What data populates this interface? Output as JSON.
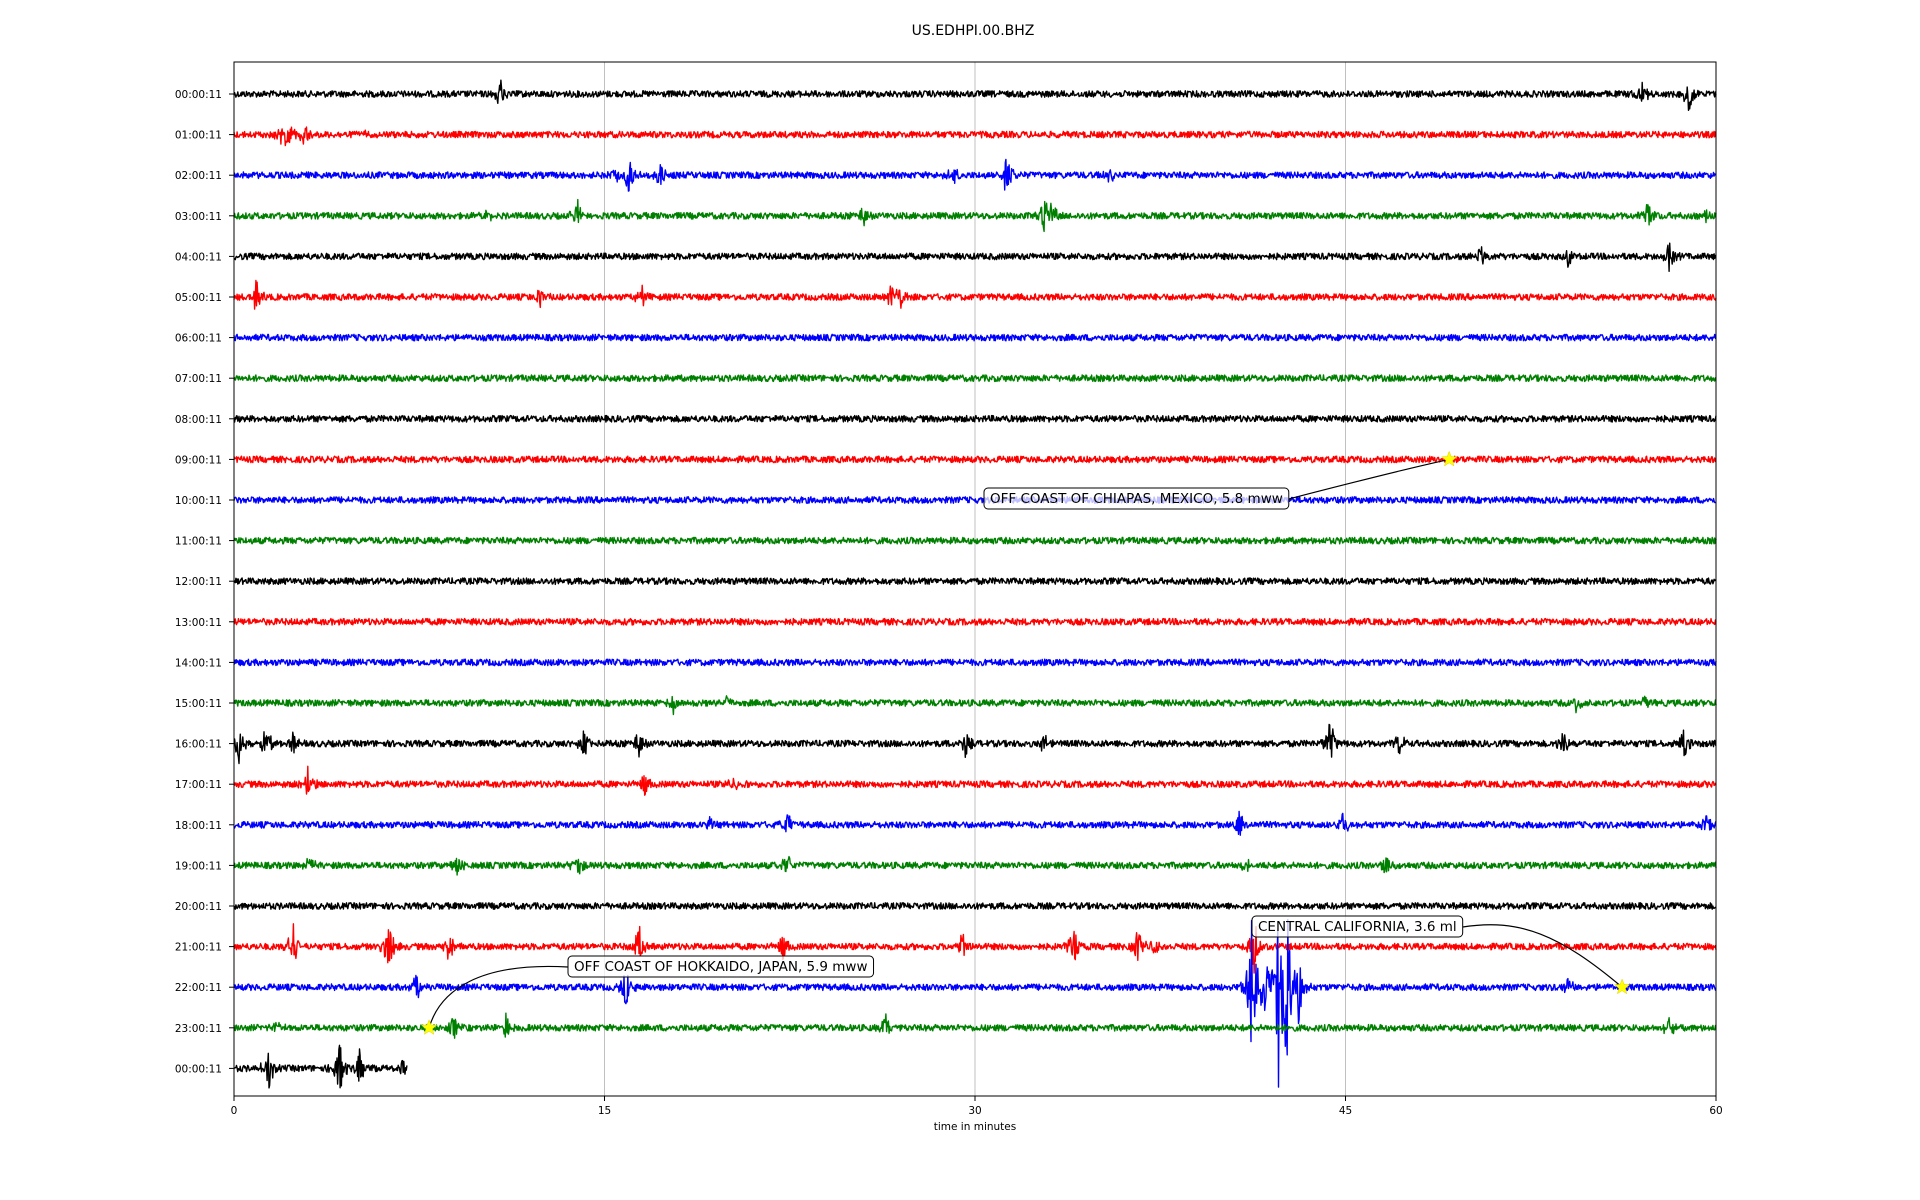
{
  "chart_data": {
    "type": "line",
    "title": "US.EDHPI.00.BHZ",
    "xlabel": "time in minutes",
    "xlim": [
      0,
      60
    ],
    "xticks": [
      "0",
      "15",
      "30",
      "45",
      "60"
    ],
    "grid": "vertical lines at x ticks",
    "rows": [
      {
        "label": "00:00:11",
        "color": "#000000",
        "end": 60
      },
      {
        "label": "01:00:11",
        "color": "#ff0000",
        "end": 60
      },
      {
        "label": "02:00:11",
        "color": "#0000ff",
        "end": 60
      },
      {
        "label": "03:00:11",
        "color": "#008000",
        "end": 60
      },
      {
        "label": "04:00:11",
        "color": "#000000",
        "end": 60
      },
      {
        "label": "05:00:11",
        "color": "#ff0000",
        "end": 60
      },
      {
        "label": "06:00:11",
        "color": "#0000ff",
        "end": 60
      },
      {
        "label": "07:00:11",
        "color": "#008000",
        "end": 60
      },
      {
        "label": "08:00:11",
        "color": "#000000",
        "end": 60
      },
      {
        "label": "09:00:11",
        "color": "#ff0000",
        "end": 60
      },
      {
        "label": "10:00:11",
        "color": "#0000ff",
        "end": 60
      },
      {
        "label": "11:00:11",
        "color": "#008000",
        "end": 60
      },
      {
        "label": "12:00:11",
        "color": "#000000",
        "end": 60
      },
      {
        "label": "13:00:11",
        "color": "#ff0000",
        "end": 60
      },
      {
        "label": "14:00:11",
        "color": "#0000ff",
        "end": 60
      },
      {
        "label": "15:00:11",
        "color": "#008000",
        "end": 60
      },
      {
        "label": "16:00:11",
        "color": "#000000",
        "end": 60
      },
      {
        "label": "17:00:11",
        "color": "#ff0000",
        "end": 60
      },
      {
        "label": "18:00:11",
        "color": "#0000ff",
        "end": 60
      },
      {
        "label": "19:00:11",
        "color": "#008000",
        "end": 60
      },
      {
        "label": "20:00:11",
        "color": "#000000",
        "end": 60
      },
      {
        "label": "21:00:11",
        "color": "#ff0000",
        "end": 60
      },
      {
        "label": "22:00:11",
        "color": "#0000ff",
        "end": 60
      },
      {
        "label": "23:00:11",
        "color": "#008000",
        "end": 60
      },
      {
        "label": "00:00:11",
        "color": "#000000",
        "end": 7
      }
    ],
    "events": [
      {
        "label": "OFF COAST OF CHIAPAS, MEXICO, 5.8 mww",
        "row": 9,
        "minute": 49.2
      },
      {
        "label": "CENTRAL CALIFORNIA, 3.6 ml",
        "row": 22,
        "minute": 56.2
      },
      {
        "label": "OFF COAST OF HOKKAIDO, JAPAN, 5.9 mww",
        "row": 23,
        "minute": 7.9
      }
    ],
    "spikes": [
      {
        "row": 0,
        "minute": 10.8,
        "amp": 16
      },
      {
        "row": 0,
        "minute": 57.0,
        "amp": 14
      },
      {
        "row": 0,
        "minute": 58.9,
        "amp": 18
      },
      {
        "row": 1,
        "minute": 2.0,
        "amp": 14
      },
      {
        "row": 1,
        "minute": 2.2,
        "amp": 18
      },
      {
        "row": 1,
        "minute": 2.9,
        "amp": 14
      },
      {
        "row": 1,
        "minute": 5.3,
        "amp": 8
      },
      {
        "row": 2,
        "minute": 15.5,
        "amp": 12
      },
      {
        "row": 2,
        "minute": 16.0,
        "amp": 22
      },
      {
        "row": 2,
        "minute": 17.3,
        "amp": 14
      },
      {
        "row": 2,
        "minute": 29.1,
        "amp": 12
      },
      {
        "row": 2,
        "minute": 31.3,
        "amp": 24
      },
      {
        "row": 2,
        "minute": 35.5,
        "amp": 8
      },
      {
        "row": 3,
        "minute": 10.3,
        "amp": 12
      },
      {
        "row": 3,
        "minute": 13.9,
        "amp": 18
      },
      {
        "row": 3,
        "minute": 25.5,
        "amp": 10
      },
      {
        "row": 3,
        "minute": 32.8,
        "amp": 20
      },
      {
        "row": 3,
        "minute": 33.1,
        "amp": 16
      },
      {
        "row": 3,
        "minute": 57.3,
        "amp": 18
      },
      {
        "row": 3,
        "minute": 59.6,
        "amp": 10
      },
      {
        "row": 4,
        "minute": 50.5,
        "amp": 14
      },
      {
        "row": 4,
        "minute": 54.0,
        "amp": 10
      },
      {
        "row": 4,
        "minute": 58.1,
        "amp": 18
      },
      {
        "row": 5,
        "minute": 0.9,
        "amp": 16
      },
      {
        "row": 5,
        "minute": 12.4,
        "amp": 10
      },
      {
        "row": 5,
        "minute": 16.5,
        "amp": 12
      },
      {
        "row": 5,
        "minute": 26.6,
        "amp": 16
      },
      {
        "row": 5,
        "minute": 27.0,
        "amp": 14
      },
      {
        "row": 15,
        "minute": 17.8,
        "amp": 10
      },
      {
        "row": 15,
        "minute": 20.0,
        "amp": 9
      },
      {
        "row": 15,
        "minute": 54.4,
        "amp": 14
      },
      {
        "row": 15,
        "minute": 57.1,
        "amp": 8
      },
      {
        "row": 16,
        "minute": 0.2,
        "amp": 20
      },
      {
        "row": 16,
        "minute": 1.3,
        "amp": 22
      },
      {
        "row": 16,
        "minute": 2.4,
        "amp": 12
      },
      {
        "row": 16,
        "minute": 14.2,
        "amp": 16
      },
      {
        "row": 16,
        "minute": 16.4,
        "amp": 14
      },
      {
        "row": 16,
        "minute": 29.6,
        "amp": 16
      },
      {
        "row": 16,
        "minute": 32.8,
        "amp": 12
      },
      {
        "row": 16,
        "minute": 44.4,
        "amp": 30
      },
      {
        "row": 16,
        "minute": 47.2,
        "amp": 12
      },
      {
        "row": 16,
        "minute": 53.8,
        "amp": 14
      },
      {
        "row": 16,
        "minute": 58.7,
        "amp": 16
      },
      {
        "row": 17,
        "minute": 3.0,
        "amp": 18
      },
      {
        "row": 17,
        "minute": 16.6,
        "amp": 14
      },
      {
        "row": 17,
        "minute": 20.2,
        "amp": 8
      },
      {
        "row": 18,
        "minute": 19.2,
        "amp": 10
      },
      {
        "row": 18,
        "minute": 22.4,
        "amp": 14
      },
      {
        "row": 18,
        "minute": 40.7,
        "amp": 14
      },
      {
        "row": 18,
        "minute": 44.9,
        "amp": 18
      },
      {
        "row": 18,
        "minute": 59.6,
        "amp": 12
      },
      {
        "row": 19,
        "minute": 3.1,
        "amp": 10
      },
      {
        "row": 19,
        "minute": 9.0,
        "amp": 14
      },
      {
        "row": 19,
        "minute": 13.9,
        "amp": 16
      },
      {
        "row": 19,
        "minute": 22.4,
        "amp": 14
      },
      {
        "row": 19,
        "minute": 41.0,
        "amp": 12
      },
      {
        "row": 19,
        "minute": 46.6,
        "amp": 14
      },
      {
        "row": 21,
        "minute": 2.4,
        "amp": 26
      },
      {
        "row": 21,
        "minute": 6.3,
        "amp": 34
      },
      {
        "row": 21,
        "minute": 8.7,
        "amp": 16
      },
      {
        "row": 21,
        "minute": 16.4,
        "amp": 22
      },
      {
        "row": 21,
        "minute": 22.2,
        "amp": 16
      },
      {
        "row": 21,
        "minute": 29.5,
        "amp": 16
      },
      {
        "row": 21,
        "minute": 34.0,
        "amp": 22
      },
      {
        "row": 21,
        "minute": 36.6,
        "amp": 20
      },
      {
        "row": 21,
        "minute": 37.3,
        "amp": 14
      },
      {
        "row": 21,
        "minute": 41.3,
        "amp": 34
      },
      {
        "row": 22,
        "minute": 7.4,
        "amp": 18
      },
      {
        "row": 22,
        "minute": 15.9,
        "amp": 24
      },
      {
        "row": 22,
        "minute": 41.2,
        "amp": 70
      },
      {
        "row": 22,
        "minute": 41.7,
        "amp": 60
      },
      {
        "row": 22,
        "minute": 42.3,
        "amp": 110
      },
      {
        "row": 22,
        "minute": 42.6,
        "amp": 100
      },
      {
        "row": 22,
        "minute": 43.1,
        "amp": 40
      },
      {
        "row": 22,
        "minute": 54.0,
        "amp": 12
      },
      {
        "row": 23,
        "minute": 1.8,
        "amp": 8
      },
      {
        "row": 23,
        "minute": 8.9,
        "amp": 12
      },
      {
        "row": 23,
        "minute": 11.0,
        "amp": 16
      },
      {
        "row": 23,
        "minute": 26.4,
        "amp": 14
      },
      {
        "row": 23,
        "minute": 58.1,
        "amp": 14
      },
      {
        "row": 24,
        "minute": 1.4,
        "amp": 22
      },
      {
        "row": 24,
        "minute": 4.3,
        "amp": 30
      },
      {
        "row": 24,
        "minute": 5.1,
        "amp": 24
      },
      {
        "row": 24,
        "minute": 6.8,
        "amp": 8
      }
    ]
  }
}
